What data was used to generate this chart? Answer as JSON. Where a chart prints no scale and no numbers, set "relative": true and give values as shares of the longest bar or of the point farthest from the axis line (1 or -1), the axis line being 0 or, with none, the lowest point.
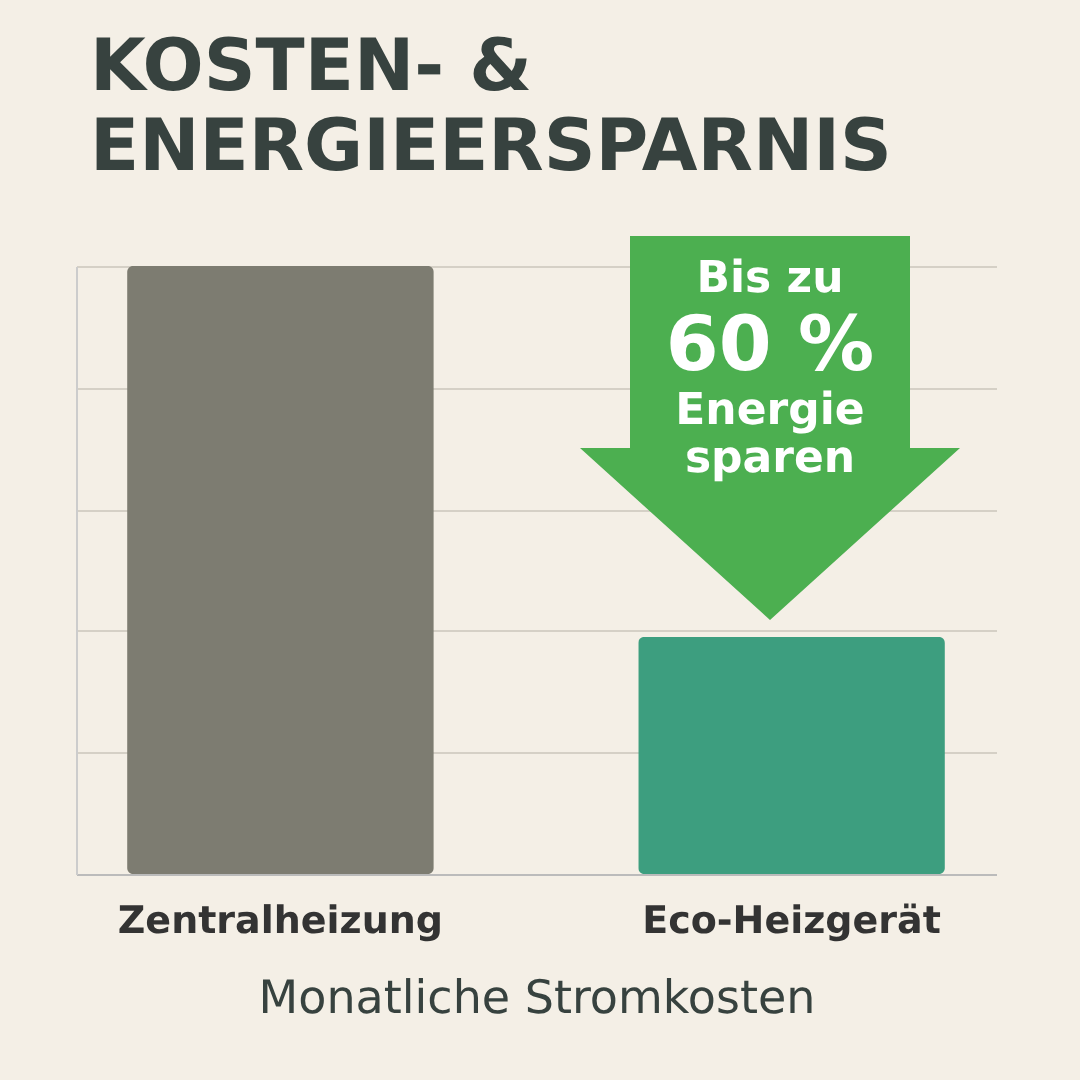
{
  "chart_data": {
    "type": "bar",
    "title": "KOSTEN- &\nENERGIEERSPARNIS",
    "xlabel": "Monatliche Stromkosten",
    "categories": [
      "Zentralheizung",
      "Eco-Heizgerät"
    ],
    "values": [
      1,
      0.39
    ],
    "colors": [
      "#7d7c71",
      "#3d9e7f"
    ],
    "relative": true,
    "grid": "y",
    "annotations": [
      "Bis zu",
      "60 %",
      "Energie sparen"
    ]
  }
}
